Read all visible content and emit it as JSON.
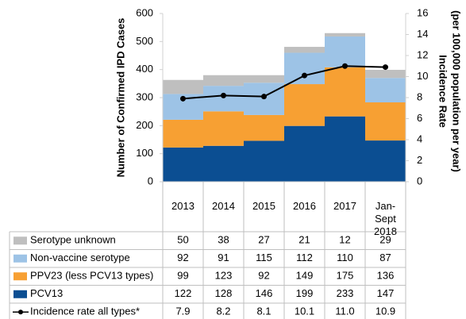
{
  "chart_data": {
    "type": "bar",
    "ylabel": "Number of Confirmed IPD Cases",
    "y2label": [
      "Incidence Rate",
      "(per 100,000 population per year)"
    ],
    "categories": [
      "2013",
      "2014",
      "2015",
      "2016",
      "2017",
      "Jan-Sept 2018"
    ],
    "series": [
      {
        "name": "Serotype unknown",
        "color": "#bfbfbf",
        "values": [
          50,
          38,
          27,
          21,
          12,
          29
        ]
      },
      {
        "name": "Non-vaccine serotype",
        "color": "#9dc3e6",
        "values": [
          92,
          91,
          115,
          112,
          110,
          87
        ]
      },
      {
        "name": "PPV23 (less PCV13 types)",
        "color": "#f7a033",
        "values": [
          99,
          123,
          92,
          149,
          175,
          136
        ]
      },
      {
        "name": "PCV13",
        "color": "#0b4e92",
        "values": [
          122,
          128,
          146,
          199,
          233,
          147
        ]
      },
      {
        "name": "Incidence rate all types*",
        "color": "#000000",
        "type": "line",
        "axis": "y2",
        "values": [
          7.9,
          8.2,
          8.1,
          10.1,
          11.0,
          10.9
        ],
        "value_labels": [
          "7.9",
          "8.2",
          "8.1",
          "10.1",
          "11.0",
          "10.9"
        ]
      }
    ],
    "ylim": [
      0,
      600
    ],
    "yticks": [
      0,
      100,
      200,
      300,
      400,
      500,
      600
    ],
    "y2lim": [
      0,
      16
    ],
    "y2ticks": [
      0,
      2,
      4,
      6,
      8,
      10,
      12,
      14,
      16
    ],
    "stacked": true,
    "data_table": true
  }
}
